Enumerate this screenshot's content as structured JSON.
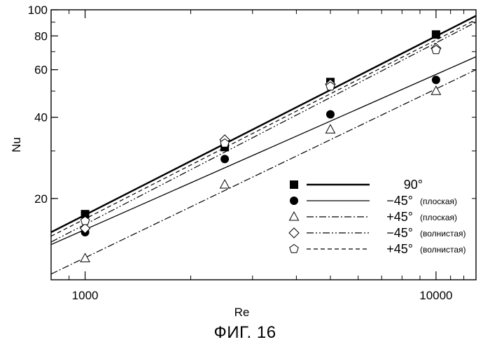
{
  "chart_data": {
    "type": "scatter",
    "xscale": "log",
    "yscale": "log",
    "xlim": [
      800,
      13000
    ],
    "ylim": [
      10,
      100
    ],
    "xlabel": "Re",
    "ylabel": "Nu",
    "grid": false,
    "legend_position": "lower-right",
    "x_ticks": [
      1000,
      10000
    ],
    "x_tick_labels": [
      "1000",
      "10000"
    ],
    "y_ticks": [
      20,
      40,
      60,
      80,
      100
    ],
    "y_tick_labels": [
      "20",
      "40",
      "60",
      "80",
      "100"
    ],
    "series": [
      {
        "name": "90°",
        "note": "",
        "marker": "filled-square",
        "line": "solid-thick",
        "points": [
          [
            1000,
            17.5
          ],
          [
            2500,
            31
          ],
          [
            5000,
            54
          ],
          [
            10000,
            81
          ]
        ],
        "fit": [
          [
            800,
            15
          ],
          [
            13000,
            95
          ]
        ]
      },
      {
        "name": "−45°",
        "note": "(плоская)",
        "marker": "filled-circle",
        "line": "solid",
        "points": [
          [
            1000,
            15
          ],
          [
            2500,
            28
          ],
          [
            5000,
            41
          ],
          [
            10000,
            55
          ]
        ],
        "fit": [
          [
            800,
            13.5
          ],
          [
            13000,
            67
          ]
        ]
      },
      {
        "name": "+45°",
        "note": "(плоская)",
        "marker": "open-triangle",
        "line": "dash-dot",
        "points": [
          [
            1000,
            12
          ],
          [
            2500,
            22.5
          ],
          [
            5000,
            36
          ],
          [
            10000,
            50
          ]
        ],
        "fit": [
          [
            800,
            10.5
          ],
          [
            13000,
            60
          ]
        ]
      },
      {
        "name": "−45°",
        "note": "(волнистая)",
        "marker": "open-diamond",
        "line": "dash-dot-dot",
        "points": [
          [
            1000,
            15.5
          ],
          [
            2500,
            33
          ],
          [
            5000,
            53
          ],
          [
            10000,
            72
          ]
        ],
        "fit": [
          [
            800,
            13.8
          ],
          [
            13000,
            90
          ]
        ]
      },
      {
        "name": "+45°",
        "note": "(волнистая)",
        "marker": "open-pentagon",
        "line": "dashed",
        "points": [
          [
            1000,
            16.5
          ],
          [
            2500,
            32
          ],
          [
            5000,
            52
          ],
          [
            10000,
            71
          ]
        ],
        "fit": [
          [
            800,
            14.5
          ],
          [
            13000,
            92
          ]
        ]
      }
    ]
  },
  "caption": "ФИГ. 16"
}
